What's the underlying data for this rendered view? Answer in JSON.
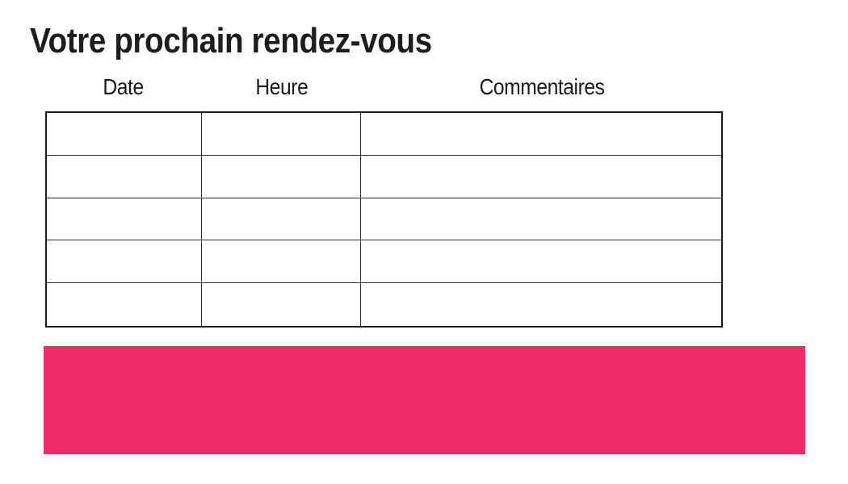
{
  "page": {
    "title": "Votre prochain rendez-vous"
  },
  "table": {
    "headers": [
      "Date",
      "Heure",
      "Commentaires"
    ],
    "rows": [
      [
        "",
        "",
        ""
      ],
      [
        "",
        "",
        ""
      ],
      [
        "",
        "",
        ""
      ],
      [
        "",
        "",
        ""
      ],
      [
        "",
        "",
        ""
      ]
    ]
  },
  "banner": {
    "color": "#ED2D67"
  },
  "colors": {
    "title_text": "#1D1D1B",
    "header_text": "#1A1A1A",
    "table_border": "#1C1C1C",
    "background": "#FFFFFF"
  }
}
